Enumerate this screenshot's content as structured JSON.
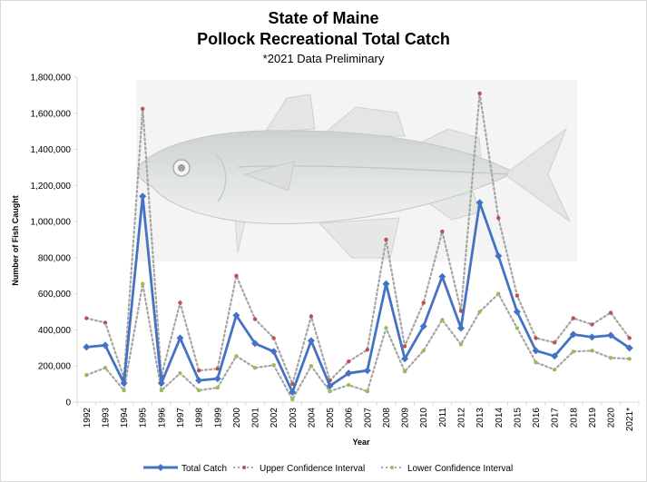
{
  "chart_data": {
    "type": "line",
    "title": "State of Maine",
    "title_line2": "Pollock Recreational Total Catch",
    "subtitle": "*2021 Data Preliminary",
    "xlabel": "Year",
    "ylabel": "Number of Fish Caught",
    "ylim": [
      0,
      1800000
    ],
    "yticks": [
      "0",
      "200,000",
      "400,000",
      "600,000",
      "800,000",
      "1,000,000",
      "1,200,000",
      "1,400,000",
      "1,600,000",
      "1,800,000"
    ],
    "categories": [
      "1992",
      "1993",
      "1994",
      "1995",
      "1996",
      "1997",
      "1998",
      "1999",
      "2000",
      "2001",
      "2002",
      "2003",
      "2004",
      "2005",
      "2006",
      "2007",
      "2008",
      "2009",
      "2010",
      "2011",
      "2012",
      "2013",
      "2014",
      "2015",
      "2016",
      "2017",
      "2018",
      "2019",
      "2020",
      "2021*"
    ],
    "series": [
      {
        "name": "Total Catch",
        "color": "#4472c4",
        "style": "solid-diamond",
        "values": [
          305000,
          315000,
          105000,
          1140000,
          105000,
          355000,
          120000,
          130000,
          480000,
          325000,
          280000,
          55000,
          340000,
          90000,
          160000,
          175000,
          655000,
          240000,
          420000,
          695000,
          410000,
          1105000,
          810000,
          500000,
          285000,
          255000,
          375000,
          360000,
          370000,
          300000
        ]
      },
      {
        "name": "Upper Confidence Interval",
        "color": "#a5a5a5",
        "marker_color": "#c0504d",
        "style": "dotted",
        "values": [
          465000,
          440000,
          135000,
          1625000,
          145000,
          550000,
          175000,
          185000,
          700000,
          460000,
          355000,
          100000,
          475000,
          120000,
          225000,
          290000,
          900000,
          310000,
          550000,
          945000,
          505000,
          1710000,
          1020000,
          590000,
          355000,
          330000,
          465000,
          430000,
          495000,
          355000
        ]
      },
      {
        "name": "Lower Confidence Interval",
        "color": "#a5a5a5",
        "marker_color": "#9bbb59",
        "style": "dotted",
        "values": [
          150000,
          190000,
          65000,
          655000,
          65000,
          160000,
          65000,
          80000,
          255000,
          190000,
          205000,
          15000,
          200000,
          60000,
          95000,
          60000,
          410000,
          170000,
          285000,
          455000,
          320000,
          500000,
          600000,
          410000,
          220000,
          180000,
          280000,
          285000,
          245000,
          240000
        ]
      }
    ],
    "grid": false,
    "legend_position": "bottom",
    "background_image": "pollock-fish-illustration"
  }
}
